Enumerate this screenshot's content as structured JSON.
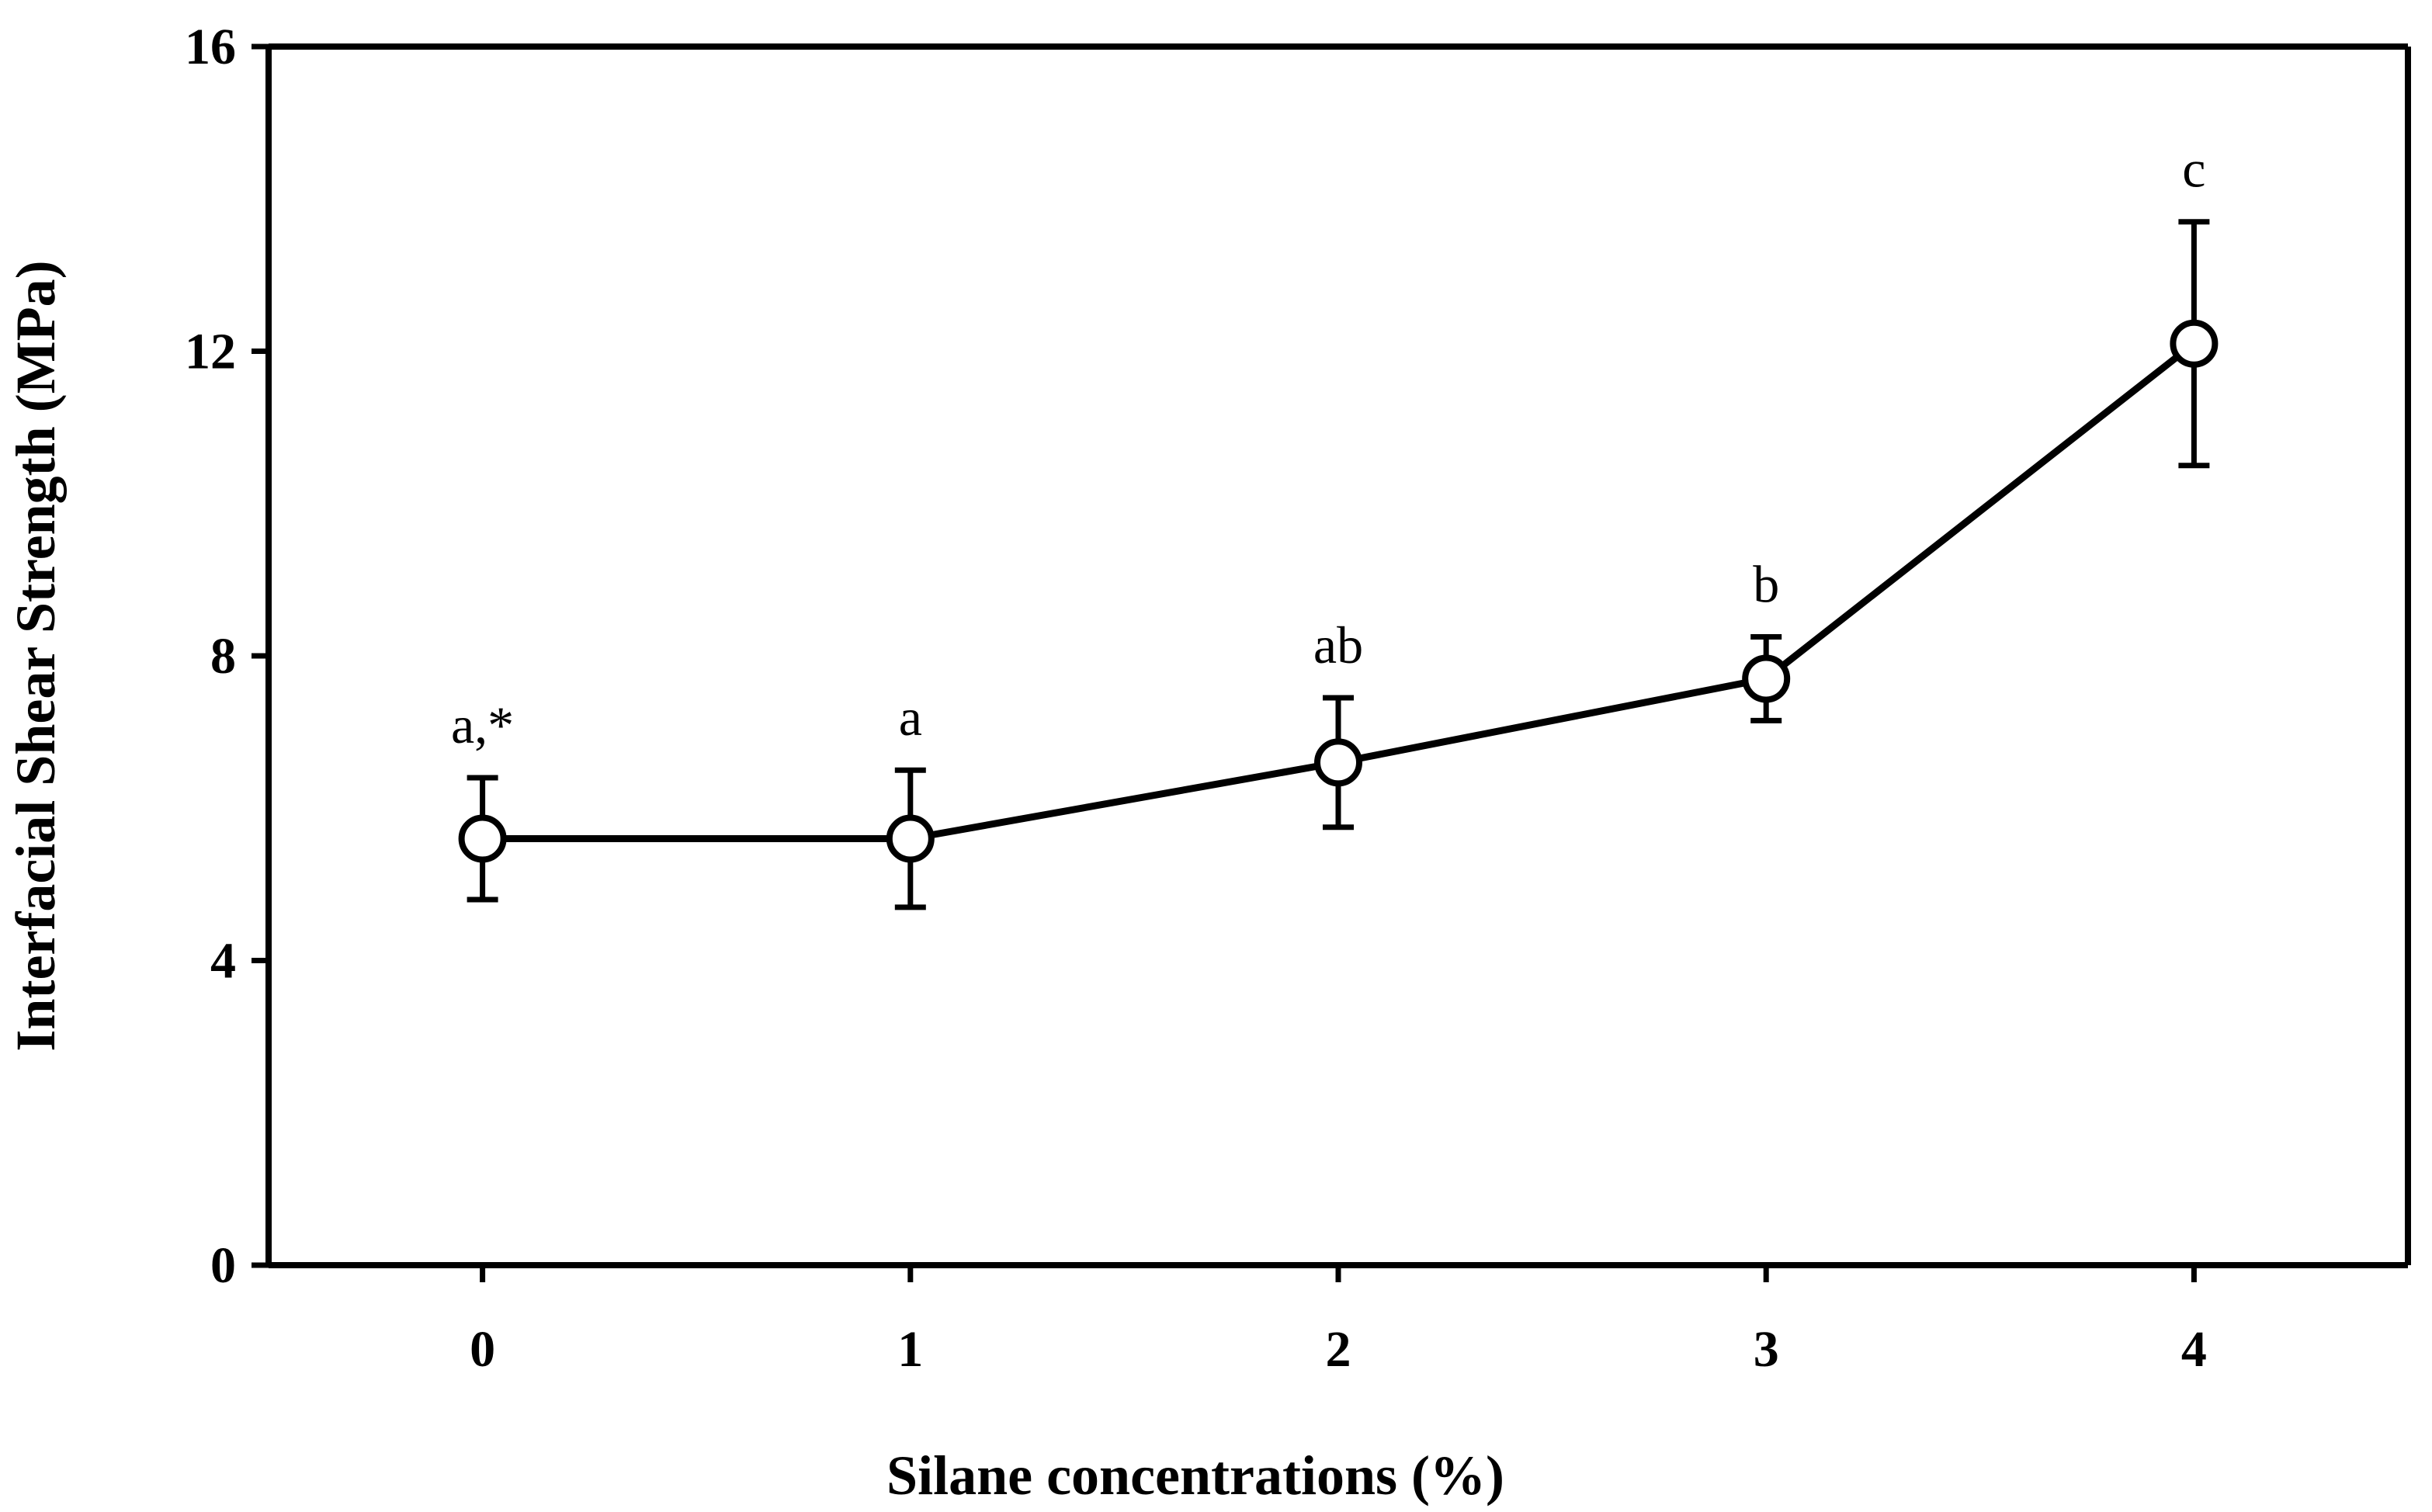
{
  "chart_data": {
    "type": "line",
    "xlabel": "Silane concentrations (%)",
    "ylabel": "Interfacial Shear Strength (MPa)",
    "xlim": [
      -0.5,
      4.5
    ],
    "ylim": [
      0,
      16
    ],
    "x_ticks": [
      "0",
      "1",
      "2",
      "3",
      "4"
    ],
    "y_ticks": [
      "0",
      "4",
      "8",
      "12",
      "16"
    ],
    "grid": false,
    "series": [
      {
        "name": "Interfacial Shear Strength",
        "x": [
          0,
          1,
          2,
          3,
          4
        ],
        "y": [
          5.6,
          5.6,
          6.6,
          7.7,
          12.1
        ],
        "error": [
          0.8,
          0.9,
          0.85,
          0.55,
          1.6
        ],
        "annotations": [
          "a,*",
          "a",
          "ab",
          "b",
          "c"
        ]
      }
    ]
  }
}
